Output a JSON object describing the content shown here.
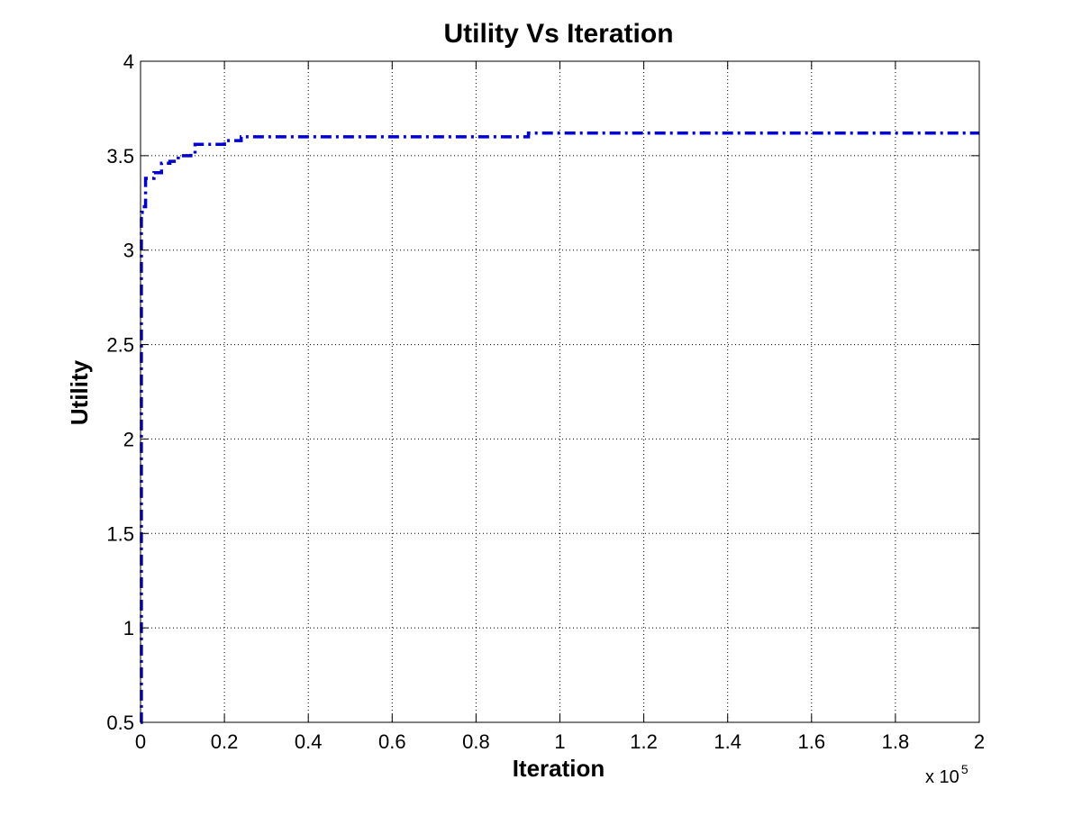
{
  "chart_data": {
    "type": "line",
    "title": "Utility Vs Iteration",
    "xlabel": "Iteration",
    "ylabel": "Utility",
    "x_multiplier": {
      "base": "x 10",
      "exponent": "5"
    },
    "xlim": [
      0,
      2
    ],
    "ylim": [
      0.5,
      4
    ],
    "x_ticks": [
      0,
      0.2,
      0.4,
      0.6,
      0.8,
      1,
      1.2,
      1.4,
      1.6,
      1.8,
      2
    ],
    "x_tick_labels": [
      "0",
      "0.2",
      "0.4",
      "0.6",
      "0.8",
      "1",
      "1.2",
      "1.4",
      "1.6",
      "1.8",
      "2"
    ],
    "y_ticks": [
      0.5,
      1,
      1.5,
      2,
      2.5,
      3,
      3.5,
      4
    ],
    "y_tick_labels": [
      "0.5",
      "1",
      "1.5",
      "2",
      "2.5",
      "3",
      "3.5",
      "4"
    ],
    "grid": true,
    "series": [
      {
        "color": "#0000cc",
        "line_style": "dash-dot",
        "step": true,
        "x": [
          0,
          0.002,
          0.004,
          0.012,
          0.032,
          0.05,
          0.07,
          0.09,
          0.12,
          0.13,
          0.15,
          0.2,
          0.24,
          0.3,
          0.5,
          0.7,
          0.9,
          0.925,
          0.95,
          1.2,
          1.5,
          1.8,
          2.0
        ],
        "y": [
          0.5,
          3.2,
          3.23,
          3.38,
          3.41,
          3.46,
          3.47,
          3.5,
          3.51,
          3.56,
          3.56,
          3.58,
          3.6,
          3.6,
          3.6,
          3.6,
          3.6,
          3.62,
          3.62,
          3.62,
          3.62,
          3.62,
          3.62
        ]
      }
    ]
  }
}
